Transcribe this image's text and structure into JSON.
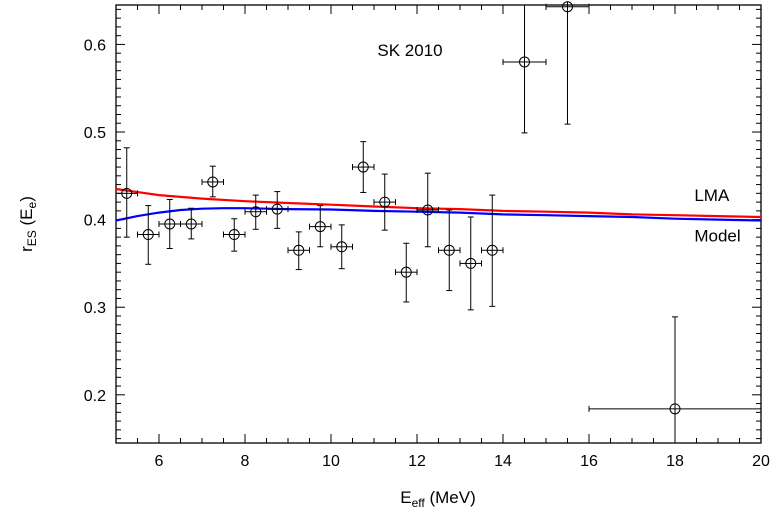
{
  "chart_data": {
    "type": "scatter",
    "title": "SK 2010",
    "xlabel": {
      "main": "E",
      "sub": "eff",
      "rest": " (MeV)"
    },
    "ylabel": {
      "main": "r",
      "sub": "ES",
      "mid": " (E",
      "sub2": "e",
      "end": ")"
    },
    "xlim": [
      5,
      20
    ],
    "ylim": [
      0.145,
      0.645
    ],
    "xticks": [
      6,
      8,
      10,
      12,
      14,
      16,
      18,
      20
    ],
    "yticks": [
      0.2,
      0.3,
      0.4,
      0.5,
      0.6
    ],
    "grid": false,
    "series": [
      {
        "name": "SK 2010",
        "style": "open-circle-errorbars",
        "points": [
          {
            "x": 5.25,
            "y": 0.43,
            "xerr": 0.25,
            "ylo": 0.38,
            "yhi": 0.482
          },
          {
            "x": 5.75,
            "y": 0.383,
            "xerr": 0.25,
            "ylo": 0.349,
            "yhi": 0.416
          },
          {
            "x": 6.25,
            "y": 0.395,
            "xerr": 0.25,
            "ylo": 0.367,
            "yhi": 0.423
          },
          {
            "x": 6.75,
            "y": 0.395,
            "xerr": 0.25,
            "ylo": 0.378,
            "yhi": 0.413
          },
          {
            "x": 7.25,
            "y": 0.443,
            "xerr": 0.25,
            "ylo": 0.426,
            "yhi": 0.461
          },
          {
            "x": 7.75,
            "y": 0.383,
            "xerr": 0.25,
            "ylo": 0.364,
            "yhi": 0.401
          },
          {
            "x": 8.25,
            "y": 0.409,
            "xerr": 0.25,
            "ylo": 0.389,
            "yhi": 0.428
          },
          {
            "x": 8.75,
            "y": 0.412,
            "xerr": 0.25,
            "ylo": 0.39,
            "yhi": 0.432
          },
          {
            "x": 9.25,
            "y": 0.365,
            "xerr": 0.25,
            "ylo": 0.343,
            "yhi": 0.386
          },
          {
            "x": 9.75,
            "y": 0.392,
            "xerr": 0.25,
            "ylo": 0.369,
            "yhi": 0.416
          },
          {
            "x": 10.25,
            "y": 0.369,
            "xerr": 0.25,
            "ylo": 0.344,
            "yhi": 0.394
          },
          {
            "x": 10.75,
            "y": 0.46,
            "xerr": 0.25,
            "ylo": 0.431,
            "yhi": 0.489
          },
          {
            "x": 11.25,
            "y": 0.42,
            "xerr": 0.25,
            "ylo": 0.388,
            "yhi": 0.452
          },
          {
            "x": 11.75,
            "y": 0.34,
            "xerr": 0.25,
            "ylo": 0.306,
            "yhi": 0.373
          },
          {
            "x": 12.25,
            "y": 0.411,
            "xerr": 0.25,
            "ylo": 0.369,
            "yhi": 0.453
          },
          {
            "x": 12.75,
            "y": 0.365,
            "xerr": 0.25,
            "ylo": 0.319,
            "yhi": 0.411
          },
          {
            "x": 13.25,
            "y": 0.35,
            "xerr": 0.25,
            "ylo": 0.297,
            "yhi": 0.403
          },
          {
            "x": 13.75,
            "y": 0.365,
            "xerr": 0.25,
            "ylo": 0.301,
            "yhi": 0.428
          },
          {
            "x": 14.5,
            "y": 0.58,
            "xerr": 0.5,
            "ylo": 0.499,
            "yhi": 0.645
          },
          {
            "x": 15.5,
            "y": 0.643,
            "xerr": 0.5,
            "ylo": 0.509,
            "yhi": 0.645
          },
          {
            "x": 18.0,
            "y": 0.184,
            "xerr": 2.0,
            "ylo": 0.145,
            "yhi": 0.289
          }
        ]
      },
      {
        "name": "LMA",
        "style": "line",
        "color": "#ff0000",
        "x": [
          5,
          6,
          7,
          8,
          9,
          10,
          11,
          12,
          13,
          14,
          15,
          16,
          17,
          18,
          19,
          20
        ],
        "y": [
          0.435,
          0.428,
          0.424,
          0.421,
          0.419,
          0.417,
          0.415,
          0.413,
          0.412,
          0.41,
          0.409,
          0.408,
          0.406,
          0.405,
          0.404,
          0.403
        ]
      },
      {
        "name": "Model",
        "style": "line",
        "color": "#0000ff",
        "x": [
          5,
          5.5,
          6,
          6.5,
          7,
          7.5,
          8,
          8.5,
          9,
          10,
          11,
          12,
          13,
          14,
          15,
          16,
          17,
          18,
          19,
          20
        ],
        "y": [
          0.399,
          0.404,
          0.408,
          0.411,
          0.4125,
          0.413,
          0.413,
          0.4125,
          0.412,
          0.4115,
          0.41,
          0.409,
          0.408,
          0.406,
          0.405,
          0.404,
          0.403,
          0.401,
          0.4,
          0.399
        ]
      }
    ],
    "annotations": [
      {
        "text": "LMA",
        "x": 18.45,
        "y": 0.428
      },
      {
        "text": "Model",
        "x": 18.45,
        "y": 0.382
      }
    ]
  }
}
